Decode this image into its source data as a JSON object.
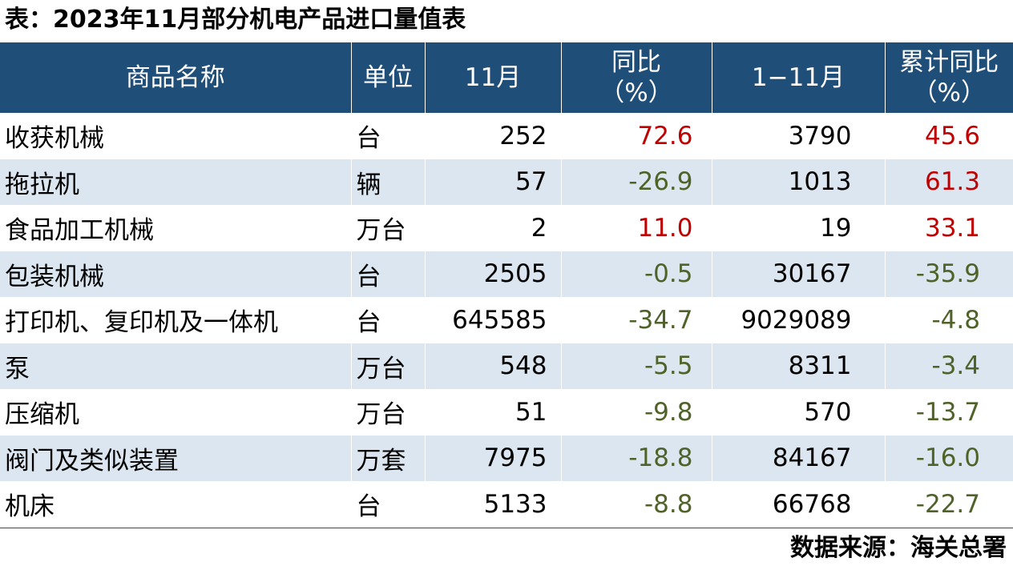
{
  "title": "表：2023年11月部分机电产品进口量值表",
  "table": {
    "header": [
      "商品名称",
      "单位",
      "11月",
      "同比\n（%）",
      "1−11月",
      "累计同比\n（%）"
    ],
    "rows": [
      [
        "收获机械",
        "台",
        "252",
        "72.6",
        "3790",
        "45.6"
      ],
      [
        "拖拉机",
        "辆",
        "57",
        "-26.9",
        "1013",
        "61.3"
      ],
      [
        "食品加工机械",
        "万台",
        "2",
        "11.0",
        "19",
        "33.1"
      ],
      [
        "包装机械",
        "台",
        "2505",
        "-0.5",
        "30167",
        "-35.9"
      ],
      [
        "打印机、复印机及一体机",
        "台",
        "645585",
        "-34.7",
        "9029089",
        "-4.8"
      ],
      [
        "泵",
        "万台",
        "548",
        "-5.5",
        "8311",
        "-3.4"
      ],
      [
        "压缩机",
        "万台",
        "51",
        "-9.8",
        "570",
        "-13.7"
      ],
      [
        "阀门及类似装置",
        "万套",
        "7975",
        "-18.8",
        "84167",
        "-16.0"
      ],
      [
        "机床",
        "台",
        "5133",
        "-8.8",
        "66768",
        "-22.7"
      ]
    ]
  },
  "source": "数据来源：海关总署"
}
